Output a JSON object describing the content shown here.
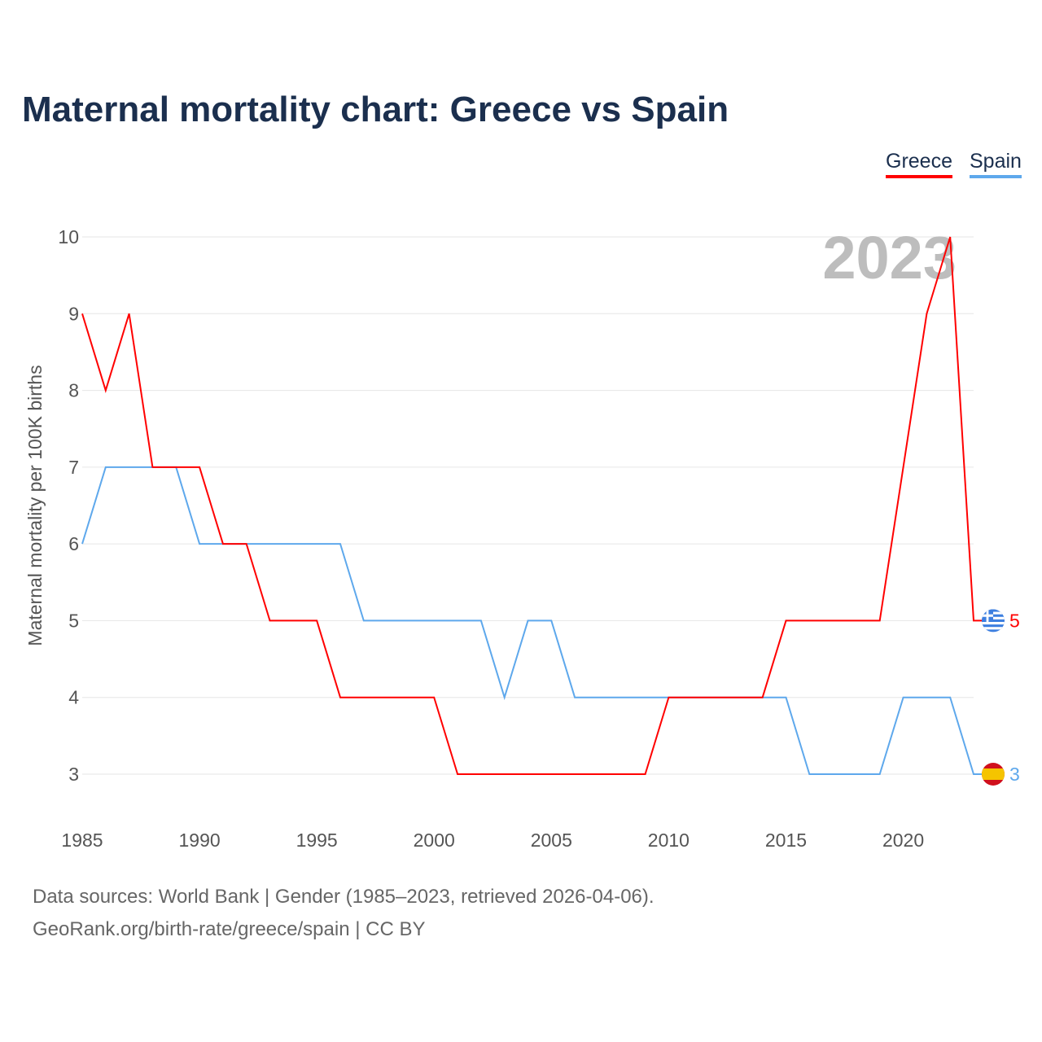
{
  "title": "Maternal mortality chart: Greece vs Spain",
  "legend": {
    "greece": "Greece",
    "spain": "Spain"
  },
  "footer": {
    "line1": "Data sources: World Bank | Gender (1985–2023, retrieved 2026-04-06).",
    "line2": "GeoRank.org/birth-rate/greece/spain | CC BY"
  },
  "chart_data": {
    "type": "line",
    "title": "Maternal mortality chart: Greece vs Spain",
    "ylabel": "Maternal mortality per 100K births",
    "xlabel": "",
    "year_label": "2023",
    "xlim": [
      1985,
      2023
    ],
    "ylim": [
      3,
      10
    ],
    "x_ticks": [
      "1985",
      "1990",
      "1995",
      "2000",
      "2005",
      "2010",
      "2015",
      "2020"
    ],
    "y_ticks": [
      "3",
      "4",
      "5",
      "6",
      "7",
      "8",
      "9",
      "10"
    ],
    "x": [
      1985,
      1986,
      1987,
      1988,
      1989,
      1990,
      1991,
      1992,
      1993,
      1994,
      1995,
      1996,
      1997,
      1998,
      1999,
      2000,
      2001,
      2002,
      2003,
      2004,
      2005,
      2006,
      2007,
      2008,
      2009,
      2010,
      2011,
      2012,
      2013,
      2014,
      2015,
      2016,
      2017,
      2018,
      2019,
      2020,
      2021,
      2022,
      2023
    ],
    "series": [
      {
        "name": "Greece",
        "color": "#ff0000",
        "end_label": "5",
        "values": [
          9,
          8,
          9,
          7,
          7,
          7,
          6,
          6,
          5,
          5,
          5,
          4,
          4,
          4,
          4,
          4,
          3,
          3,
          3,
          3,
          3,
          3,
          3,
          3,
          3,
          4,
          4,
          4,
          4,
          4,
          5,
          5,
          5,
          5,
          5,
          7,
          9,
          10,
          5
        ]
      },
      {
        "name": "Spain",
        "color": "#5ea8ec",
        "end_label": "3",
        "values": [
          6,
          7,
          7,
          7,
          7,
          6,
          6,
          6,
          6,
          6,
          6,
          6,
          5,
          5,
          5,
          5,
          5,
          5,
          4,
          5,
          5,
          4,
          4,
          4,
          4,
          4,
          4,
          4,
          4,
          4,
          4,
          3,
          3,
          3,
          3,
          4,
          4,
          4,
          3
        ]
      }
    ],
    "grid": true,
    "legend_position": "top-right"
  }
}
